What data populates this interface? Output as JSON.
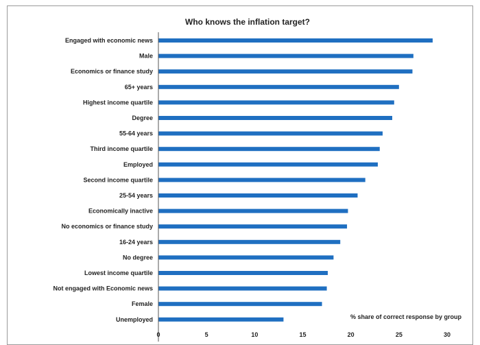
{
  "chart_data": {
    "type": "bar",
    "orientation": "horizontal",
    "title": "Who knows the inflation target?",
    "annotation": "% share of correct response by group",
    "categories": [
      "Engaged with economic news",
      "Male",
      "Economics or finance study",
      "65+ years",
      "Highest income quartile",
      "Degree",
      "55-64 years",
      "Third income quartile",
      "Employed",
      "Second income quartile",
      "25-54 years",
      "Economically inactive",
      "No economics or finance study",
      "16-24 years",
      "No degree",
      "Lowest income quartile",
      "Not engaged with Economic news",
      "Female",
      "Unemployed"
    ],
    "values": [
      28.5,
      26.5,
      26.4,
      25.0,
      24.5,
      24.3,
      23.3,
      23.0,
      22.8,
      21.5,
      20.7,
      19.7,
      19.6,
      18.9,
      18.2,
      17.6,
      17.5,
      17.0,
      13.0
    ],
    "xticks": [
      "0",
      "5",
      "10",
      "15",
      "20",
      "25",
      "30"
    ],
    "xlim": [
      0,
      30
    ],
    "grid": false,
    "colors": {
      "bar": "#1f6fc1",
      "text": "#222222",
      "axis": "#555555"
    }
  }
}
